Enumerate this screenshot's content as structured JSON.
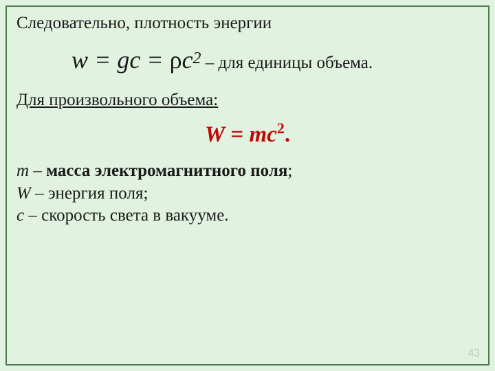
{
  "colors": {
    "background": "#e1f2e1",
    "border": "#4c7a4c",
    "text": "#1a1a1a",
    "accent": "#c10808",
    "pagenum": "#b8cfb8"
  },
  "line1": "Следовательно, плотность энергии",
  "formula1": {
    "w": "w",
    "eq1": " = ",
    "g": "g",
    "c1": "c",
    "eq2": " = ",
    "rho": "ρ",
    "c2": "c",
    "sup": "2",
    "tail": " – для единицы объема."
  },
  "line2": "Для произвольного объема",
  "line2_colon": ":",
  "formula2": {
    "W": "W",
    "eq": " = ",
    "m": "m",
    "c": "c",
    "sup": "2",
    "dot": "."
  },
  "defs": {
    "m_var": "m",
    "m_sep": " – ",
    "m_text": "масса электромагнитного поля",
    "m_end": ";",
    "W_var": "W",
    "W_text": " – энергия поля;",
    "c_var": "c",
    "c_text": " – скорость света в вакууме."
  },
  "page": "43"
}
